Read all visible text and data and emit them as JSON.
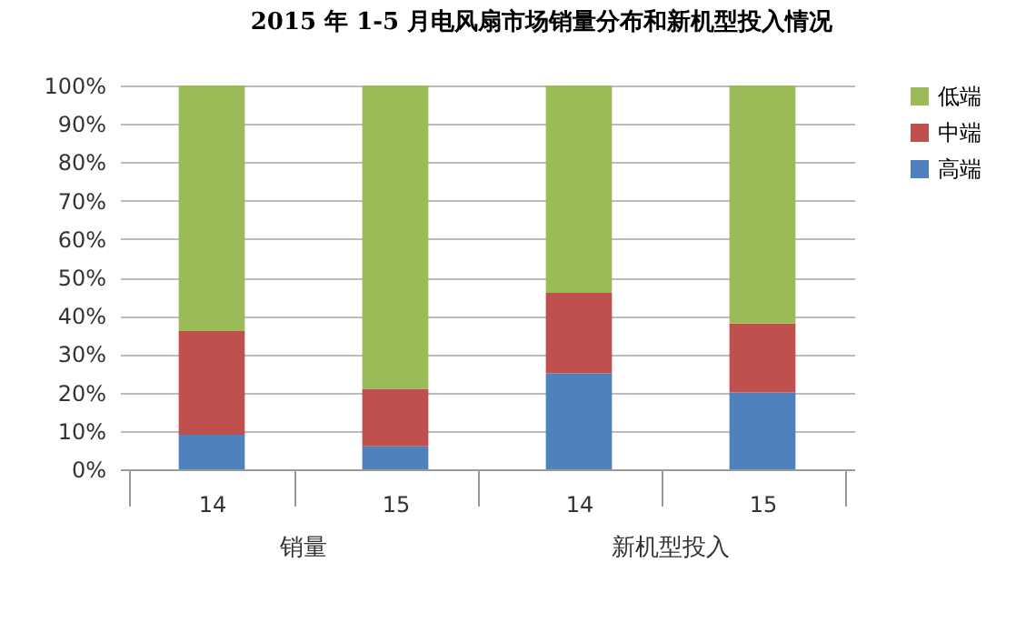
{
  "chart_data": {
    "type": "bar",
    "title": "2015 年 1-5 月电风扇市场销量分布和新机型投入情况",
    "categories": [
      "14",
      "15",
      "14",
      "15"
    ],
    "annotations": [
      "销量",
      "新机型投入"
    ],
    "stacked": true,
    "series": [
      {
        "name": "高端",
        "color": "#4f81bd",
        "values": [
          9,
          6,
          25,
          20
        ]
      },
      {
        "name": "中端",
        "color": "#c0504d",
        "values": [
          27,
          15,
          21,
          18
        ]
      },
      {
        "name": "低端",
        "color": "#9bbb59",
        "values": [
          64,
          79,
          54,
          62
        ]
      }
    ],
    "ylim": [
      0,
      100
    ],
    "yticks": [
      {
        "value": 0,
        "label": "0%"
      },
      {
        "value": 10,
        "label": "10%"
      },
      {
        "value": 20,
        "label": "20%"
      },
      {
        "value": 30,
        "label": "30%"
      },
      {
        "value": 40,
        "label": "40%"
      },
      {
        "value": 50,
        "label": "50%"
      },
      {
        "value": 60,
        "label": "60%"
      },
      {
        "value": 70,
        "label": "70%"
      },
      {
        "value": 80,
        "label": "80%"
      },
      {
        "value": 90,
        "label": "90%"
      },
      {
        "value": 100,
        "label": "100%"
      }
    ],
    "grid": "y",
    "legend": "right"
  }
}
